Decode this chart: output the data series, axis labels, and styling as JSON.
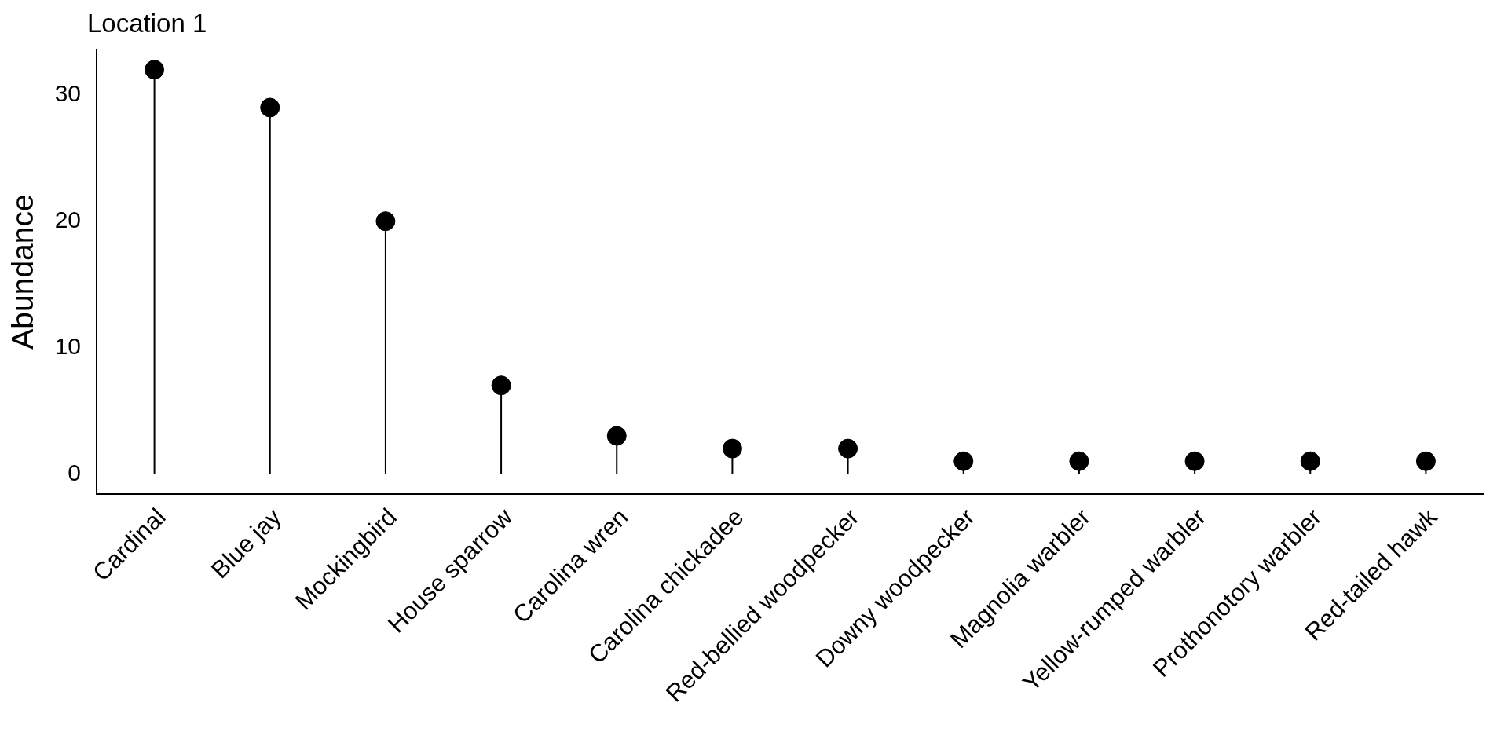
{
  "chart_data": {
    "type": "lollipop",
    "title": "Location 1",
    "ylabel": "Abundance",
    "categories": [
      "Cardinal",
      "Blue jay",
      "Mockingbird",
      "House sparrow",
      "Carolina wren",
      "Carolina chickadee",
      "Red-bellied woodpecker",
      "Downy woodpecker",
      "Magnolia warbler",
      "Yellow-rumped warbler",
      "Prothonotory warbler",
      "Red-tailed hawk"
    ],
    "values": [
      32,
      29,
      20,
      7,
      3,
      2,
      2,
      1,
      1,
      1,
      1,
      1
    ],
    "color": "#000000",
    "ylim": [
      -1.6,
      33.6
    ],
    "yticks": [
      0,
      10,
      20,
      30
    ],
    "marker": "circle"
  }
}
